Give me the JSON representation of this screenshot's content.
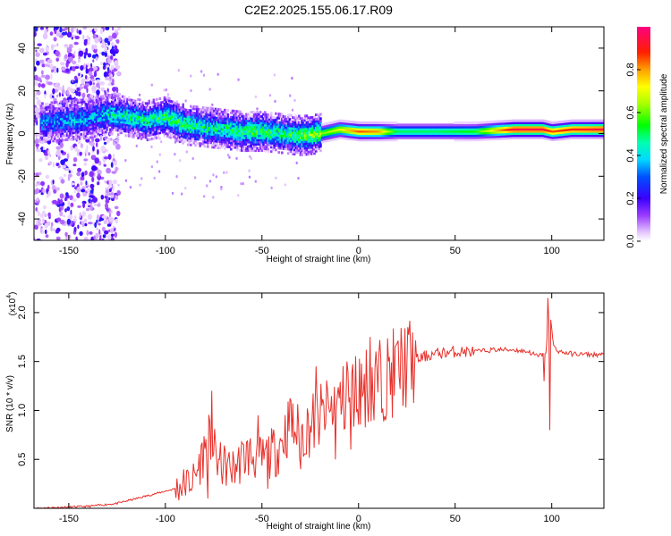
{
  "title": "C2E2.2025.155.06.17.R09",
  "chart_data": [
    {
      "type": "heatmap",
      "xlabel": "Height of straight line (km)",
      "ylabel": "Frequency (Hz)",
      "xlim": [
        -168,
        127
      ],
      "ylim": [
        -50,
        50
      ],
      "xticks": [
        -150,
        -100,
        -50,
        0,
        50,
        100
      ],
      "xtick_labels": [
        "-150",
        "-100",
        "-50",
        "0",
        "50",
        "100"
      ],
      "yticks": [
        -40,
        -20,
        0,
        20,
        40
      ],
      "ytick_labels": [
        "-40",
        "-20",
        "0",
        "20",
        "40"
      ],
      "colorbar": {
        "label": "Normalized spectral amplitude",
        "range": [
          0,
          1
        ],
        "ticks": [
          0,
          0.2,
          0.4,
          0.6,
          0.8
        ],
        "tick_labels": [
          "0.0",
          "0.2",
          "0.4",
          "0.6",
          "0.8"
        ]
      },
      "ridge": {
        "x": [
          -165,
          -140,
          -130,
          -120,
          -110,
          -100,
          -90,
          -80,
          -70,
          -60,
          -50,
          -40,
          -30,
          -20,
          -10,
          0,
          10,
          20,
          40,
          60,
          80,
          95,
          100,
          110,
          127
        ],
        "y": [
          5,
          7,
          9,
          8,
          6,
          8,
          4,
          3,
          2,
          1,
          1,
          0,
          -1,
          0,
          2,
          1,
          1,
          1,
          1,
          1,
          2,
          2,
          1,
          2,
          2
        ],
        "amplitude": [
          0.3,
          0.35,
          0.4,
          0.45,
          0.45,
          0.5,
          0.5,
          0.45,
          0.45,
          0.5,
          0.5,
          0.45,
          0.55,
          0.6,
          0.7,
          0.85,
          0.8,
          0.5,
          0.5,
          0.55,
          0.95,
          0.95,
          0.85,
          0.9,
          0.95
        ]
      },
      "noise_region_x": [
        -168,
        -130
      ]
    },
    {
      "type": "line",
      "xlabel": "Height of straight line (km)",
      "ylabel": "SNR (10 * v/v)",
      "y_multiplier": "(x10",
      "y_multiplier_exp": "4",
      "y_multiplier_close": ")",
      "xlim": [
        -168,
        127
      ],
      "ylim": [
        0,
        2.2
      ],
      "xticks": [
        -150,
        -100,
        -50,
        0,
        50,
        100
      ],
      "xtick_labels": [
        "-150",
        "-100",
        "-50",
        "0",
        "50",
        "100"
      ],
      "yticks": [
        0.5,
        1.0,
        1.5,
        2.0
      ],
      "ytick_labels": [
        "0.5",
        "1.0",
        "1.5",
        "2.0"
      ],
      "series": [
        {
          "color": "#e8302a",
          "x": [
            -168,
            -140,
            -125,
            -115,
            -105,
            -95,
            -85,
            -78,
            -72,
            -65,
            -58,
            -50,
            -42,
            -36,
            -30,
            -22,
            -14,
            -8,
            -2,
            4,
            10,
            16,
            22,
            28,
            34,
            40,
            50,
            60,
            70,
            80,
            88,
            93,
            97,
            99,
            101,
            104,
            110,
            120,
            127
          ],
          "y": [
            0.0,
            0.02,
            0.05,
            0.1,
            0.15,
            0.2,
            0.3,
            0.7,
            0.45,
            0.4,
            0.55,
            0.5,
            0.6,
            0.85,
            0.75,
            0.9,
            1.0,
            1.1,
            1.2,
            1.25,
            1.3,
            1.35,
            1.45,
            1.5,
            1.55,
            1.58,
            1.6,
            1.6,
            1.62,
            1.62,
            1.6,
            1.55,
            1.6,
            2.0,
            1.65,
            1.6,
            1.58,
            1.57,
            1.57
          ],
          "spikes": [
            [
              -76,
              1.2
            ],
            [
              -78,
              0.1
            ],
            [
              -52,
              0.95
            ],
            [
              -47,
              0.2
            ],
            [
              -35,
              1.1
            ],
            [
              -30,
              0.4
            ],
            [
              -22,
              1.45
            ],
            [
              -16,
              1.2
            ],
            [
              -12,
              0.5
            ],
            [
              -6,
              1.5
            ],
            [
              -4,
              0.6
            ],
            [
              6,
              1.75
            ],
            [
              8,
              0.9
            ],
            [
              14,
              0.9
            ],
            [
              98,
              2.15
            ],
            [
              99,
              0.8
            ],
            [
              96,
              1.3
            ]
          ]
        }
      ]
    }
  ]
}
